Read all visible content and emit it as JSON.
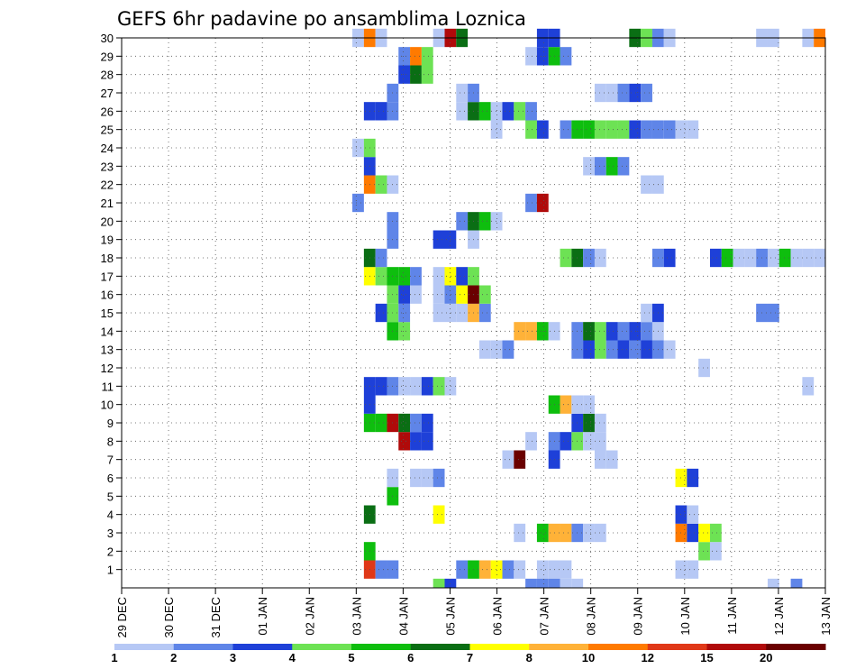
{
  "chart_data": {
    "type": "heatmap",
    "title": "GEFS 6hr padavine po ansamblima Loznica",
    "xlabel": "",
    "ylabel": "",
    "x_tick_labels": [
      "29 DEC",
      "30 DEC",
      "31 DEC",
      "01 JAN",
      "02 JAN",
      "03 JAN",
      "04 JAN",
      "05 JAN",
      "06 JAN",
      "07 JAN",
      "08 JAN",
      "09 JAN",
      "10 JAN",
      "11 JAN",
      "12 JAN",
      "13 JAN"
    ],
    "y_tick_labels": [
      "1",
      "2",
      "3",
      "4",
      "5",
      "6",
      "7",
      "8",
      "9",
      "10",
      "11",
      "12",
      "13",
      "14",
      "15",
      "16",
      "17",
      "18",
      "19",
      "20",
      "21",
      "22",
      "23",
      "24",
      "25",
      "26",
      "27",
      "28",
      "29",
      "30"
    ],
    "ylim": [
      0,
      30
    ],
    "grid": true,
    "colorbar": {
      "placement": "bottom",
      "labels": [
        "1",
        "2",
        "3",
        "4",
        "5",
        "6",
        "7",
        "8",
        "10",
        "12",
        "15",
        "20"
      ],
      "colors": [
        "#b6c8f5",
        "#5f85e8",
        "#1e40d8",
        "#6de254",
        "#0ebe0e",
        "#0a6e14",
        "#ffff00",
        "#ffb238",
        "#ff7a00",
        "#e03818",
        "#b00a0a",
        "#6a0000"
      ]
    },
    "x_step_note": "6-hour steps; step index 0 = 29 DEC 00Z, 4 steps per day",
    "cells": [
      [
        1,
        42,
        10
      ],
      [
        1,
        43,
        2
      ],
      [
        1,
        44,
        2
      ],
      [
        1,
        50,
        2
      ],
      [
        1,
        51,
        5
      ],
      [
        1,
        52,
        8
      ],
      [
        1,
        53,
        7
      ],
      [
        1,
        54,
        2
      ],
      [
        1,
        55,
        1
      ],
      [
        1,
        57,
        1
      ],
      [
        1,
        58,
        1
      ],
      [
        1,
        59,
        1
      ],
      [
        1,
        69,
        1
      ],
      [
        1,
        70,
        1
      ],
      [
        2,
        42,
        5
      ],
      [
        2,
        71,
        4
      ],
      [
        2,
        72,
        1
      ],
      [
        3,
        55,
        1
      ],
      [
        3,
        57,
        5
      ],
      [
        3,
        58,
        8
      ],
      [
        3,
        59,
        8
      ],
      [
        3,
        60,
        2
      ],
      [
        3,
        61,
        1
      ],
      [
        3,
        62,
        1
      ],
      [
        3,
        69,
        9
      ],
      [
        3,
        70,
        3
      ],
      [
        3,
        71,
        7
      ],
      [
        3,
        72,
        4
      ],
      [
        4,
        42,
        6
      ],
      [
        4,
        48,
        7
      ],
      [
        4,
        69,
        3
      ],
      [
        4,
        70,
        1
      ],
      [
        5,
        44,
        5
      ],
      [
        6,
        44,
        1
      ],
      [
        6,
        46,
        1
      ],
      [
        6,
        47,
        1
      ],
      [
        6,
        48,
        2
      ],
      [
        6,
        69,
        7
      ],
      [
        6,
        70,
        3
      ],
      [
        7,
        54,
        1
      ],
      [
        7,
        55,
        12
      ],
      [
        7,
        58,
        3
      ],
      [
        7,
        62,
        1
      ],
      [
        7,
        63,
        1
      ],
      [
        8,
        45,
        11
      ],
      [
        8,
        46,
        3
      ],
      [
        8,
        47,
        3
      ],
      [
        8,
        56,
        1
      ],
      [
        8,
        58,
        2
      ],
      [
        8,
        59,
        3
      ],
      [
        8,
        60,
        4
      ],
      [
        8,
        61,
        1
      ],
      [
        8,
        62,
        1
      ],
      [
        9,
        42,
        5
      ],
      [
        9,
        43,
        5
      ],
      [
        9,
        44,
        11
      ],
      [
        9,
        45,
        6
      ],
      [
        9,
        46,
        2
      ],
      [
        9,
        47,
        3
      ],
      [
        9,
        60,
        3
      ],
      [
        9,
        61,
        6
      ],
      [
        9,
        62,
        1
      ],
      [
        9,
        82,
        2
      ],
      [
        10,
        42,
        3
      ],
      [
        10,
        58,
        5
      ],
      [
        10,
        59,
        8
      ],
      [
        10,
        60,
        1
      ],
      [
        10,
        61,
        1
      ],
      [
        11,
        42,
        3
      ],
      [
        11,
        43,
        3
      ],
      [
        11,
        44,
        2
      ],
      [
        11,
        45,
        1
      ],
      [
        11,
        46,
        1
      ],
      [
        11,
        47,
        3
      ],
      [
        11,
        48,
        4
      ],
      [
        11,
        49,
        1
      ],
      [
        11,
        80,
        1
      ],
      [
        11,
        82,
        1
      ],
      [
        12,
        71,
        1
      ],
      [
        12,
        82,
        1
      ],
      [
        13,
        52,
        1
      ],
      [
        13,
        53,
        1
      ],
      [
        13,
        54,
        2
      ],
      [
        13,
        60,
        2
      ],
      [
        13,
        61,
        3
      ],
      [
        13,
        62,
        4
      ],
      [
        13,
        63,
        2
      ],
      [
        13,
        64,
        3
      ],
      [
        13,
        65,
        2
      ],
      [
        13,
        66,
        3
      ],
      [
        13,
        67,
        2
      ],
      [
        13,
        68,
        1
      ],
      [
        14,
        44,
        5
      ],
      [
        14,
        45,
        4
      ],
      [
        14,
        55,
        8
      ],
      [
        14,
        56,
        8
      ],
      [
        14,
        57,
        5
      ],
      [
        14,
        58,
        1
      ],
      [
        14,
        60,
        2
      ],
      [
        14,
        61,
        6
      ],
      [
        14,
        62,
        4
      ],
      [
        14,
        63,
        3
      ],
      [
        14,
        64,
        2
      ],
      [
        14,
        65,
        3
      ],
      [
        14,
        66,
        2
      ],
      [
        14,
        67,
        1
      ],
      [
        15,
        43,
        3
      ],
      [
        15,
        44,
        4
      ],
      [
        15,
        45,
        2
      ],
      [
        15,
        48,
        1
      ],
      [
        15,
        49,
        1
      ],
      [
        15,
        50,
        1
      ],
      [
        15,
        51,
        8
      ],
      [
        15,
        52,
        2
      ],
      [
        15,
        66,
        1
      ],
      [
        15,
        67,
        3
      ],
      [
        15,
        76,
        2
      ],
      [
        15,
        77,
        2
      ],
      [
        16,
        44,
        4
      ],
      [
        16,
        45,
        3
      ],
      [
        16,
        46,
        1
      ],
      [
        16,
        48,
        1
      ],
      [
        16,
        49,
        2
      ],
      [
        16,
        50,
        7
      ],
      [
        16,
        51,
        12
      ],
      [
        16,
        52,
        4
      ],
      [
        17,
        42,
        7
      ],
      [
        17,
        43,
        4
      ],
      [
        17,
        44,
        5
      ],
      [
        17,
        45,
        5
      ],
      [
        17,
        46,
        2
      ],
      [
        17,
        48,
        1
      ],
      [
        17,
        49,
        7
      ],
      [
        17,
        50,
        3
      ],
      [
        17,
        51,
        4
      ],
      [
        18,
        42,
        6
      ],
      [
        18,
        43,
        2
      ],
      [
        18,
        59,
        4
      ],
      [
        18,
        60,
        6
      ],
      [
        18,
        61,
        2
      ],
      [
        18,
        62,
        1
      ],
      [
        18,
        67,
        2
      ],
      [
        18,
        68,
        3
      ],
      [
        18,
        72,
        3
      ],
      [
        18,
        73,
        5
      ],
      [
        18,
        74,
        1
      ],
      [
        18,
        75,
        1
      ],
      [
        18,
        76,
        2
      ],
      [
        18,
        77,
        1
      ],
      [
        18,
        78,
        5
      ],
      [
        18,
        79,
        1
      ],
      [
        18,
        80,
        1
      ],
      [
        18,
        81,
        1
      ],
      [
        18,
        82,
        1
      ],
      [
        19,
        44,
        2
      ],
      [
        19,
        48,
        3
      ],
      [
        19,
        49,
        3
      ],
      [
        19,
        51,
        1
      ],
      [
        20,
        44,
        2
      ],
      [
        20,
        50,
        2
      ],
      [
        20,
        51,
        6
      ],
      [
        20,
        52,
        5
      ],
      [
        20,
        53,
        1
      ],
      [
        21,
        41,
        2
      ],
      [
        21,
        56,
        2
      ],
      [
        21,
        57,
        11
      ],
      [
        22,
        42,
        9
      ],
      [
        22,
        43,
        4
      ],
      [
        22,
        44,
        1
      ],
      [
        22,
        66,
        1
      ],
      [
        22,
        67,
        1
      ],
      [
        23,
        42,
        3
      ],
      [
        23,
        61,
        1
      ],
      [
        23,
        62,
        2
      ],
      [
        23,
        63,
        5
      ],
      [
        23,
        64,
        2
      ],
      [
        24,
        41,
        1
      ],
      [
        24,
        42,
        4
      ],
      [
        25,
        53,
        1
      ],
      [
        25,
        56,
        4
      ],
      [
        25,
        57,
        3
      ],
      [
        25,
        59,
        2
      ],
      [
        25,
        60,
        5
      ],
      [
        25,
        61,
        5
      ],
      [
        25,
        62,
        4
      ],
      [
        25,
        63,
        4
      ],
      [
        25,
        64,
        4
      ],
      [
        25,
        65,
        3
      ],
      [
        25,
        66,
        2
      ],
      [
        25,
        67,
        2
      ],
      [
        25,
        68,
        2
      ],
      [
        25,
        69,
        1
      ],
      [
        25,
        70,
        1
      ],
      [
        26,
        42,
        3
      ],
      [
        26,
        43,
        3
      ],
      [
        26,
        44,
        2
      ],
      [
        26,
        50,
        1
      ],
      [
        26,
        51,
        6
      ],
      [
        26,
        52,
        5
      ],
      [
        26,
        53,
        1
      ],
      [
        26,
        54,
        3
      ],
      [
        26,
        55,
        4
      ],
      [
        26,
        56,
        2
      ],
      [
        27,
        44,
        2
      ],
      [
        27,
        50,
        1
      ],
      [
        27,
        51,
        2
      ],
      [
        27,
        62,
        1
      ],
      [
        27,
        63,
        1
      ],
      [
        27,
        64,
        2
      ],
      [
        27,
        65,
        3
      ],
      [
        27,
        66,
        2
      ],
      [
        28,
        45,
        3
      ],
      [
        28,
        46,
        6
      ],
      [
        28,
        47,
        4
      ],
      [
        29,
        45,
        2
      ],
      [
        29,
        46,
        9
      ],
      [
        29,
        47,
        4
      ],
      [
        29,
        56,
        1
      ],
      [
        29,
        57,
        3
      ],
      [
        29,
        58,
        5
      ],
      [
        29,
        59,
        2
      ],
      [
        30,
        41,
        1
      ],
      [
        30,
        42,
        9
      ],
      [
        30,
        43,
        1
      ],
      [
        30,
        48,
        1
      ],
      [
        30,
        49,
        11
      ],
      [
        30,
        50,
        6
      ],
      [
        30,
        57,
        3
      ],
      [
        30,
        58,
        3
      ],
      [
        30,
        65,
        6
      ],
      [
        30,
        66,
        4
      ],
      [
        30,
        67,
        2
      ],
      [
        30,
        68,
        1
      ],
      [
        30,
        76,
        1
      ],
      [
        30,
        77,
        1
      ],
      [
        30,
        80,
        1
      ],
      [
        30,
        81,
        9
      ]
    ],
    "bottom_strip": [
      [
        48,
        4
      ],
      [
        49,
        3
      ],
      [
        56,
        2
      ],
      [
        57,
        2
      ],
      [
        58,
        2
      ],
      [
        59,
        1
      ],
      [
        60,
        1
      ],
      [
        77,
        1
      ],
      [
        79,
        2
      ]
    ]
  }
}
